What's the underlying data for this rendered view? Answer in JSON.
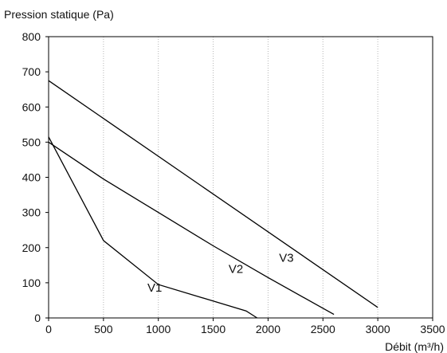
{
  "chart_data": {
    "type": "line",
    "ylabel": "Pression statique (Pa)",
    "xlabel": "Débit (m³/h)",
    "xlim": [
      0,
      3500
    ],
    "ylim": [
      0,
      800
    ],
    "xticks": [
      0,
      500,
      1000,
      1500,
      2000,
      2500,
      3000,
      3500
    ],
    "yticks": [
      0,
      100,
      200,
      300,
      400,
      500,
      600,
      700,
      800
    ],
    "grid": "vertical dotted",
    "legend": "none",
    "series": [
      {
        "name": "V1",
        "label_at": [
          900,
          75
        ],
        "points": [
          [
            0,
            515
          ],
          [
            500,
            220
          ],
          [
            1000,
            95
          ],
          [
            1800,
            20
          ],
          [
            1900,
            0
          ]
        ]
      },
      {
        "name": "V2",
        "label_at": [
          1640,
          128
        ],
        "points": [
          [
            0,
            500
          ],
          [
            500,
            395
          ],
          [
            1000,
            300
          ],
          [
            1500,
            205
          ],
          [
            2000,
            115
          ],
          [
            2600,
            10
          ]
        ]
      },
      {
        "name": "V3",
        "label_at": [
          2100,
          160
        ],
        "points": [
          [
            0,
            675
          ],
          [
            3000,
            30
          ]
        ]
      }
    ],
    "line_color": "#000000"
  }
}
